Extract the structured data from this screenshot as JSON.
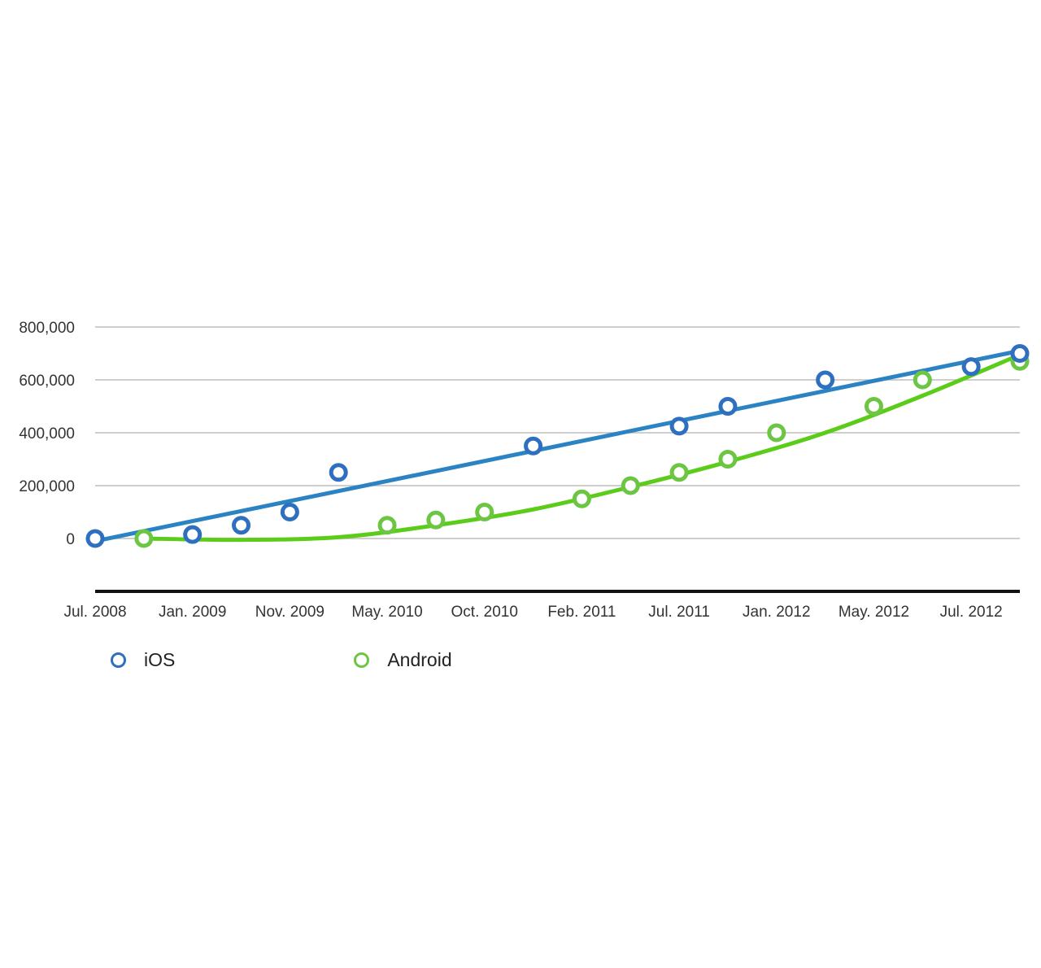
{
  "chart_data": {
    "type": "scatter",
    "title": "",
    "xlabel": "",
    "ylabel": "",
    "x_tick_labels": [
      "Jul. 2008",
      "Jan. 2009",
      "Nov. 2009",
      "May. 2010",
      "Oct. 2010",
      "Feb. 2011",
      "Jul. 2011",
      "Jan. 2012",
      "May. 2012",
      "Jul. 2012"
    ],
    "y_tick_labels": [
      "800,000",
      "600,000",
      "400,000",
      "200,000",
      "0"
    ],
    "ylim": [
      -200000,
      800000
    ],
    "grid": true,
    "legend_position": "bottom-left",
    "point_categories": [
      "Jul. 2008",
      "",
      "Jan. 2009",
      "",
      "Nov. 2009",
      "",
      "May. 2010",
      "",
      "Oct. 2010",
      "",
      "Feb. 2011",
      "",
      "Jul. 2011",
      "",
      "Jan. 2012",
      "",
      "May. 2012",
      "",
      "Jul. 2012",
      ""
    ],
    "series": [
      {
        "name": "iOS",
        "color": "#2f6fbf",
        "trend_color": "#2b83c3",
        "trend": "linear",
        "points": [
          {
            "i": 0,
            "y": 0
          },
          {
            "i": 2,
            "y": 15000
          },
          {
            "i": 3,
            "y": 50000
          },
          {
            "i": 4,
            "y": 100000
          },
          {
            "i": 5,
            "y": 250000
          },
          {
            "i": 9,
            "y": 350000
          },
          {
            "i": 12,
            "y": 425000
          },
          {
            "i": 13,
            "y": 500000
          },
          {
            "i": 15,
            "y": 600000
          },
          {
            "i": 18,
            "y": 650000
          },
          {
            "i": 19,
            "y": 700000
          }
        ],
        "trend_values": [
          {
            "i": 0,
            "y": -10000
          },
          {
            "i": 19,
            "y": 710000
          }
        ]
      },
      {
        "name": "Android",
        "color": "#6cc644",
        "trend_color": "#5ccc1a",
        "trend": "polynomial",
        "points": [
          {
            "i": 1,
            "y": 0
          },
          {
            "i": 6,
            "y": 50000
          },
          {
            "i": 7,
            "y": 70000
          },
          {
            "i": 8,
            "y": 100000
          },
          {
            "i": 10,
            "y": 150000
          },
          {
            "i": 11,
            "y": 200000
          },
          {
            "i": 12,
            "y": 250000
          },
          {
            "i": 13,
            "y": 300000
          },
          {
            "i": 14,
            "y": 400000
          },
          {
            "i": 16,
            "y": 500000
          },
          {
            "i": 17,
            "y": 600000
          },
          {
            "i": 18,
            "y": 650000
          },
          {
            "i": 19,
            "y": 670000
          }
        ],
        "trend_values": [
          {
            "i": 1,
            "y": 0
          },
          {
            "i": 3,
            "y": -5000
          },
          {
            "i": 5,
            "y": 5000
          },
          {
            "i": 7,
            "y": 50000
          },
          {
            "i": 9,
            "y": 110000
          },
          {
            "i": 11,
            "y": 195000
          },
          {
            "i": 13,
            "y": 290000
          },
          {
            "i": 15,
            "y": 400000
          },
          {
            "i": 17,
            "y": 540000
          },
          {
            "i": 19,
            "y": 695000
          }
        ]
      }
    ]
  }
}
